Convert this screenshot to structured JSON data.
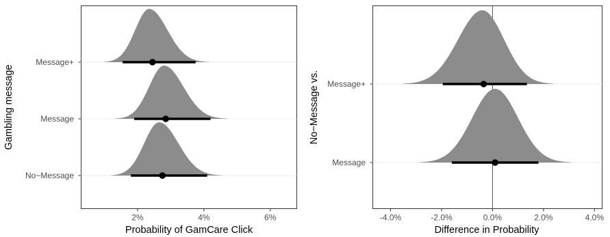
{
  "chart_data": [
    {
      "type": "ridgeline",
      "ylabel": "Gambling message",
      "xlabel": "Probability of GamCare Click",
      "xlim": [
        0.3,
        6.8
      ],
      "xticks": [
        2,
        4,
        6
      ],
      "xtick_labels": [
        "2%",
        "4%",
        "6%"
      ],
      "grid": false,
      "series": [
        {
          "category": "Message+",
          "point": 2.45,
          "interval": [
            1.55,
            3.75
          ],
          "density_mode": 2.35,
          "density_sd_left": 0.42,
          "density_sd_right": 0.55
        },
        {
          "category": "Message",
          "point": 2.85,
          "interval": [
            1.9,
            4.2
          ],
          "density_mode": 2.8,
          "density_sd_left": 0.45,
          "density_sd_right": 0.58
        },
        {
          "category": "No−Message",
          "point": 2.75,
          "interval": [
            1.8,
            4.1
          ],
          "density_mode": 2.65,
          "density_sd_left": 0.45,
          "density_sd_right": 0.58
        }
      ]
    },
    {
      "type": "ridgeline",
      "ylabel": "No−Message vs.",
      "xlabel": "Difference in Probability",
      "xlim": [
        -4.7,
        4.3
      ],
      "xticks": [
        -4,
        -2,
        0,
        2,
        4
      ],
      "xtick_labels": [
        "-4.0%",
        "-2.0%",
        "0.0%",
        "2.0%",
        "4.0%"
      ],
      "reference_line": 0,
      "grid": false,
      "series": [
        {
          "category": "Message+",
          "point": -0.35,
          "interval": [
            -1.95,
            1.35
          ],
          "density_mode": -0.4,
          "density_sd_left": 0.95,
          "density_sd_right": 0.85
        },
        {
          "category": "Message",
          "point": 0.1,
          "interval": [
            -1.6,
            1.8
          ],
          "density_mode": 0.1,
          "density_sd_left": 0.9,
          "density_sd_right": 0.9
        }
      ]
    }
  ],
  "colors": {
    "density_fill": "#8c8c8c",
    "interval": "#000000",
    "panel_border": "#333333",
    "baseline": "#ebebeb",
    "reference_line": "#555555"
  }
}
